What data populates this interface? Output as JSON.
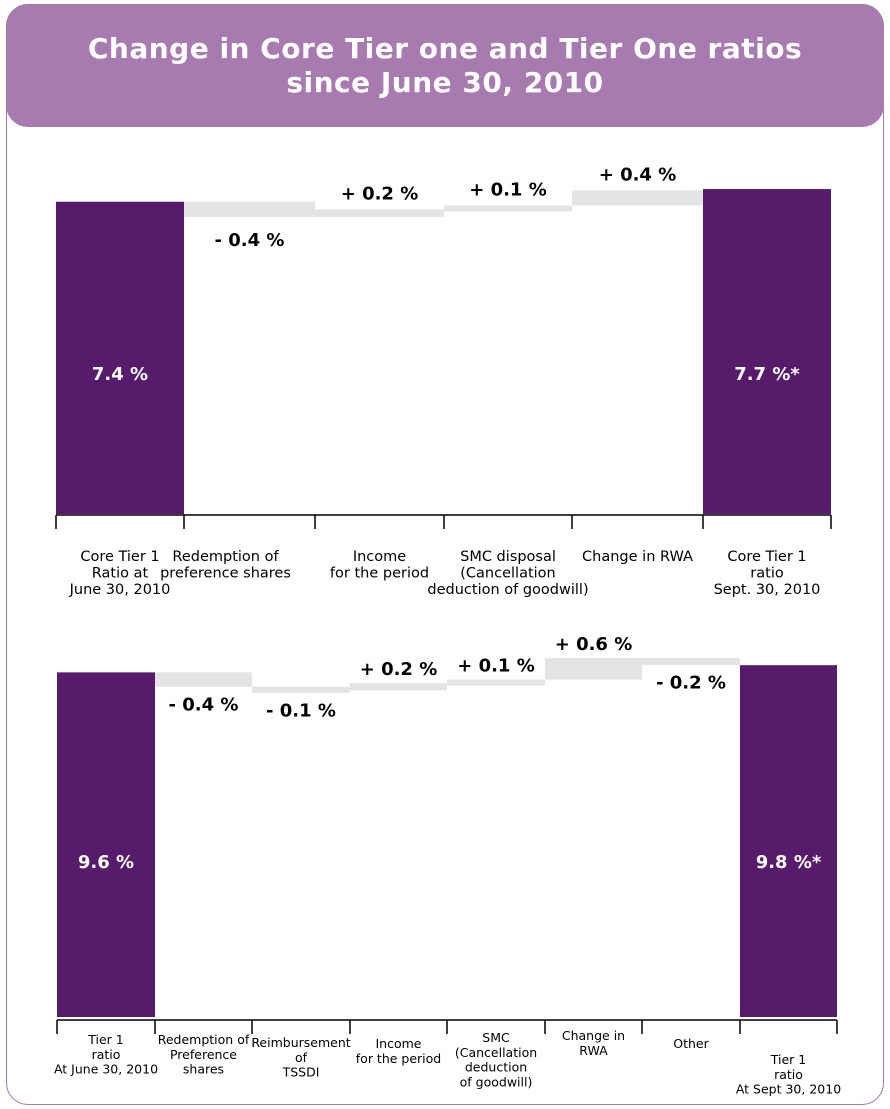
{
  "title": "Change in Core Tier one and Tier One ratios\nsince June 30, 2010",
  "colors": {
    "header": "#a77bb0",
    "total_bar": "#561b6b",
    "delta_bar": "#e4e4e4",
    "axis": "#000000"
  },
  "chart_data": [
    {
      "type": "bar",
      "subtype": "waterfall",
      "categories": [
        "Core Tier 1\nRatio at\nJune 30, 2010",
        "Redemption of\npreference shares",
        "Income\nfor the period",
        "SMC  disposal\n(Cancellation\ndeduction of goodwill)",
        "Change in RWA",
        "Core Tier 1\nratio\nSept. 30, 2010"
      ],
      "values": [
        7.4,
        -0.4,
        0.2,
        0.1,
        0.4,
        7.7
      ],
      "value_labels": [
        "7.4 %",
        "- 0.4 %",
        "+ 0.2 %",
        "+ 0.1 %",
        "+ 0.4 %",
        "7.7 %*"
      ],
      "kinds": [
        "total",
        "delta",
        "delta",
        "delta",
        "delta",
        "total"
      ]
    },
    {
      "type": "bar",
      "subtype": "waterfall",
      "categories": [
        "Tier 1\nratio\nAt June 30, 2010",
        "Redemption of\nPreference\nshares",
        "Reimbursement\nof\nTSSDI",
        "Income\nfor the period",
        "SMC\n(Cancellation\ndeduction\nof  goodwill)",
        "Change in\nRWA",
        "Other",
        "Tier 1\nratio\nAt Sept 30, 2010"
      ],
      "values": [
        9.6,
        -0.4,
        -0.1,
        0.2,
        0.1,
        0.6,
        -0.2,
        9.8
      ],
      "value_labels": [
        "9.6 %",
        "- 0.4 %",
        "- 0.1 %",
        "+ 0.2 %",
        "+ 0.1 %",
        "+ 0.6 %",
        "- 0.2 %",
        "9.8 %*"
      ],
      "kinds": [
        "total",
        "delta",
        "delta",
        "delta",
        "delta",
        "delta",
        "delta",
        "total"
      ]
    }
  ]
}
